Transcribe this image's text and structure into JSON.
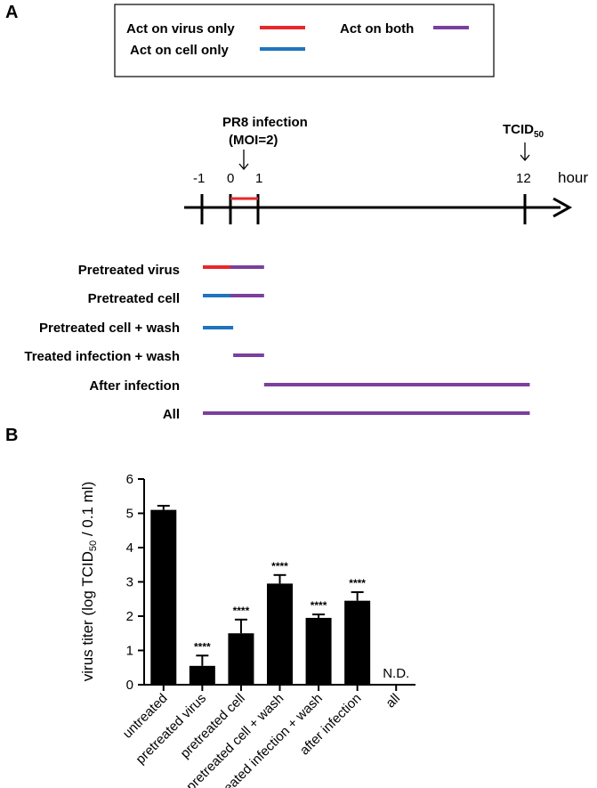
{
  "panel_a": {
    "label": "A",
    "legend": [
      {
        "label": "Act on virus only",
        "color": "#e8282b"
      },
      {
        "label": "Act on cell only",
        "color": "#1f74bd"
      },
      {
        "label": "Act on both",
        "color": "#7b3f9d"
      }
    ],
    "timeline": {
      "infection_label_line1": "PR8 infection",
      "infection_label_line2": "(MOI=2)",
      "tcid_label": "TCID",
      "tcid_sub": "50",
      "unit_label": "hour",
      "ticks": [
        "-1",
        "0",
        "1",
        "12"
      ]
    },
    "treatments": [
      {
        "label": "Pretreated virus",
        "segments": [
          {
            "start": -1,
            "end": 0,
            "color": "#e8282b"
          },
          {
            "start": 0,
            "end": 1.25,
            "color": "#7b3f9d"
          }
        ]
      },
      {
        "label": "Pretreated cell",
        "segments": [
          {
            "start": -1,
            "end": 0,
            "color": "#1f74bd"
          },
          {
            "start": 0,
            "end": 1.25,
            "color": "#7b3f9d"
          }
        ]
      },
      {
        "label": "Pretreated cell + wash",
        "segments": [
          {
            "start": -1,
            "end": 0.1,
            "color": "#1f74bd"
          }
        ]
      },
      {
        "label": "Treated infection + wash",
        "segments": [
          {
            "start": 0.1,
            "end": 1.25,
            "color": "#7b3f9d"
          }
        ]
      },
      {
        "label": "After infection",
        "segments": [
          {
            "start": 1.25,
            "end": 12.2,
            "color": "#7b3f9d"
          }
        ]
      },
      {
        "label": "All",
        "segments": [
          {
            "start": -1,
            "end": 12.2,
            "color": "#7b3f9d"
          }
        ]
      }
    ]
  },
  "chart_data": {
    "type": "bar",
    "panel_label": "B",
    "title": "",
    "ylabel_main": "virus titer (log TCID",
    "ylabel_sub": "50",
    "ylabel_tail": " / 0.1 ml)",
    "xlabel": "",
    "ylim": [
      0,
      6
    ],
    "yticks": [
      "0",
      "1",
      "2",
      "3",
      "4",
      "5",
      "6"
    ],
    "categories": [
      "untreated",
      "pretreated virus",
      "pretreated cell",
      "pretreated cell + wash",
      "treated infection + wash",
      "after infection",
      "all"
    ],
    "values": [
      5.1,
      0.55,
      1.5,
      2.95,
      1.95,
      2.45,
      null
    ],
    "errors": [
      0.12,
      0.3,
      0.4,
      0.25,
      0.1,
      0.25,
      null
    ],
    "annotations": [
      "",
      "****",
      "****",
      "****",
      "****",
      "****",
      "N.D."
    ],
    "bar_color": "#000000"
  }
}
